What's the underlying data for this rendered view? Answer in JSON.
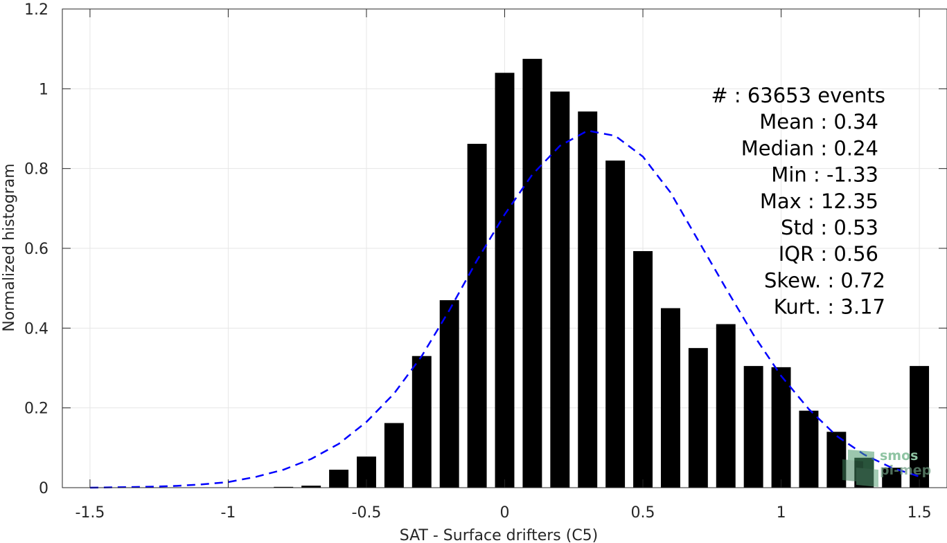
{
  "chart_data": {
    "type": "bar",
    "xlabel": "SAT - Surface drifters (C5)",
    "ylabel": "Normalized histogram",
    "xlim": [
      -1.6,
      1.6
    ],
    "ylim": [
      0,
      1.2
    ],
    "grid": true,
    "xticks": [
      -1.5,
      -1,
      -0.5,
      0,
      0.5,
      1,
      1.5
    ],
    "xtick_labels": [
      "-1.5",
      "-1",
      "-0.5",
      "0",
      "0.5",
      "1",
      "1.5"
    ],
    "yticks": [
      0,
      0.2,
      0.4,
      0.6,
      0.8,
      1,
      1.2
    ],
    "ytick_labels": [
      "0",
      "0.2",
      "0.4",
      "0.6",
      "0.8",
      "1",
      "1.2"
    ],
    "bar_width": 0.07,
    "bar_color": "#000000",
    "bars": [
      {
        "x": -0.8,
        "y": 0.002
      },
      {
        "x": -0.7,
        "y": 0.005
      },
      {
        "x": -0.6,
        "y": 0.045
      },
      {
        "x": -0.5,
        "y": 0.078
      },
      {
        "x": -0.4,
        "y": 0.162
      },
      {
        "x": -0.3,
        "y": 0.33
      },
      {
        "x": -0.2,
        "y": 0.47
      },
      {
        "x": -0.1,
        "y": 0.862
      },
      {
        "x": 0.0,
        "y": 1.04
      },
      {
        "x": 0.1,
        "y": 1.075
      },
      {
        "x": 0.2,
        "y": 0.993
      },
      {
        "x": 0.3,
        "y": 0.943
      },
      {
        "x": 0.4,
        "y": 0.82
      },
      {
        "x": 0.5,
        "y": 0.593
      },
      {
        "x": 0.6,
        "y": 0.45
      },
      {
        "x": 0.7,
        "y": 0.35
      },
      {
        "x": 0.8,
        "y": 0.41
      },
      {
        "x": 0.9,
        "y": 0.305
      },
      {
        "x": 1.0,
        "y": 0.302
      },
      {
        "x": 1.1,
        "y": 0.193
      },
      {
        "x": 1.2,
        "y": 0.14
      },
      {
        "x": 1.3,
        "y": 0.075
      },
      {
        "x": 1.4,
        "y": 0.05
      },
      {
        "x": 1.5,
        "y": 0.305
      }
    ],
    "fit_curve": {
      "color": "#0000ff",
      "style": "dashed",
      "points": [
        [
          -1.5,
          0.0
        ],
        [
          -1.4,
          0.001
        ],
        [
          -1.3,
          0.002
        ],
        [
          -1.2,
          0.004
        ],
        [
          -1.1,
          0.008
        ],
        [
          -1.0,
          0.014
        ],
        [
          -0.9,
          0.027
        ],
        [
          -0.8,
          0.045
        ],
        [
          -0.7,
          0.072
        ],
        [
          -0.6,
          0.11
        ],
        [
          -0.5,
          0.165
        ],
        [
          -0.4,
          0.236
        ],
        [
          -0.3,
          0.33
        ],
        [
          -0.2,
          0.445
        ],
        [
          -0.1,
          0.57
        ],
        [
          0.0,
          0.685
        ],
        [
          0.1,
          0.785
        ],
        [
          0.2,
          0.857
        ],
        [
          0.3,
          0.895
        ],
        [
          0.4,
          0.882
        ],
        [
          0.5,
          0.83
        ],
        [
          0.6,
          0.74
        ],
        [
          0.7,
          0.62
        ],
        [
          0.8,
          0.5
        ],
        [
          0.9,
          0.383
        ],
        [
          1.0,
          0.28
        ],
        [
          1.1,
          0.197
        ],
        [
          1.2,
          0.13
        ],
        [
          1.3,
          0.083
        ],
        [
          1.4,
          0.05
        ],
        [
          1.5,
          0.028
        ]
      ]
    },
    "stats": [
      {
        "id": "events",
        "text": "#  : 63653 events"
      },
      {
        "id": "mean",
        "text": "Mean : 0.34"
      },
      {
        "id": "median",
        "text": "Median : 0.24"
      },
      {
        "id": "min",
        "text": "Min : -1.33"
      },
      {
        "id": "max",
        "text": "Max : 12.35"
      },
      {
        "id": "std",
        "text": "Std : 0.53"
      },
      {
        "id": "iqr",
        "text": "IQR : 0.56"
      },
      {
        "id": "skew",
        "text": "Skew. : 0.72"
      },
      {
        "id": "kurt",
        "text": "Kurt. : 3.17"
      }
    ]
  },
  "watermark": {
    "line1": "smos",
    "line2": "pi-mep"
  }
}
